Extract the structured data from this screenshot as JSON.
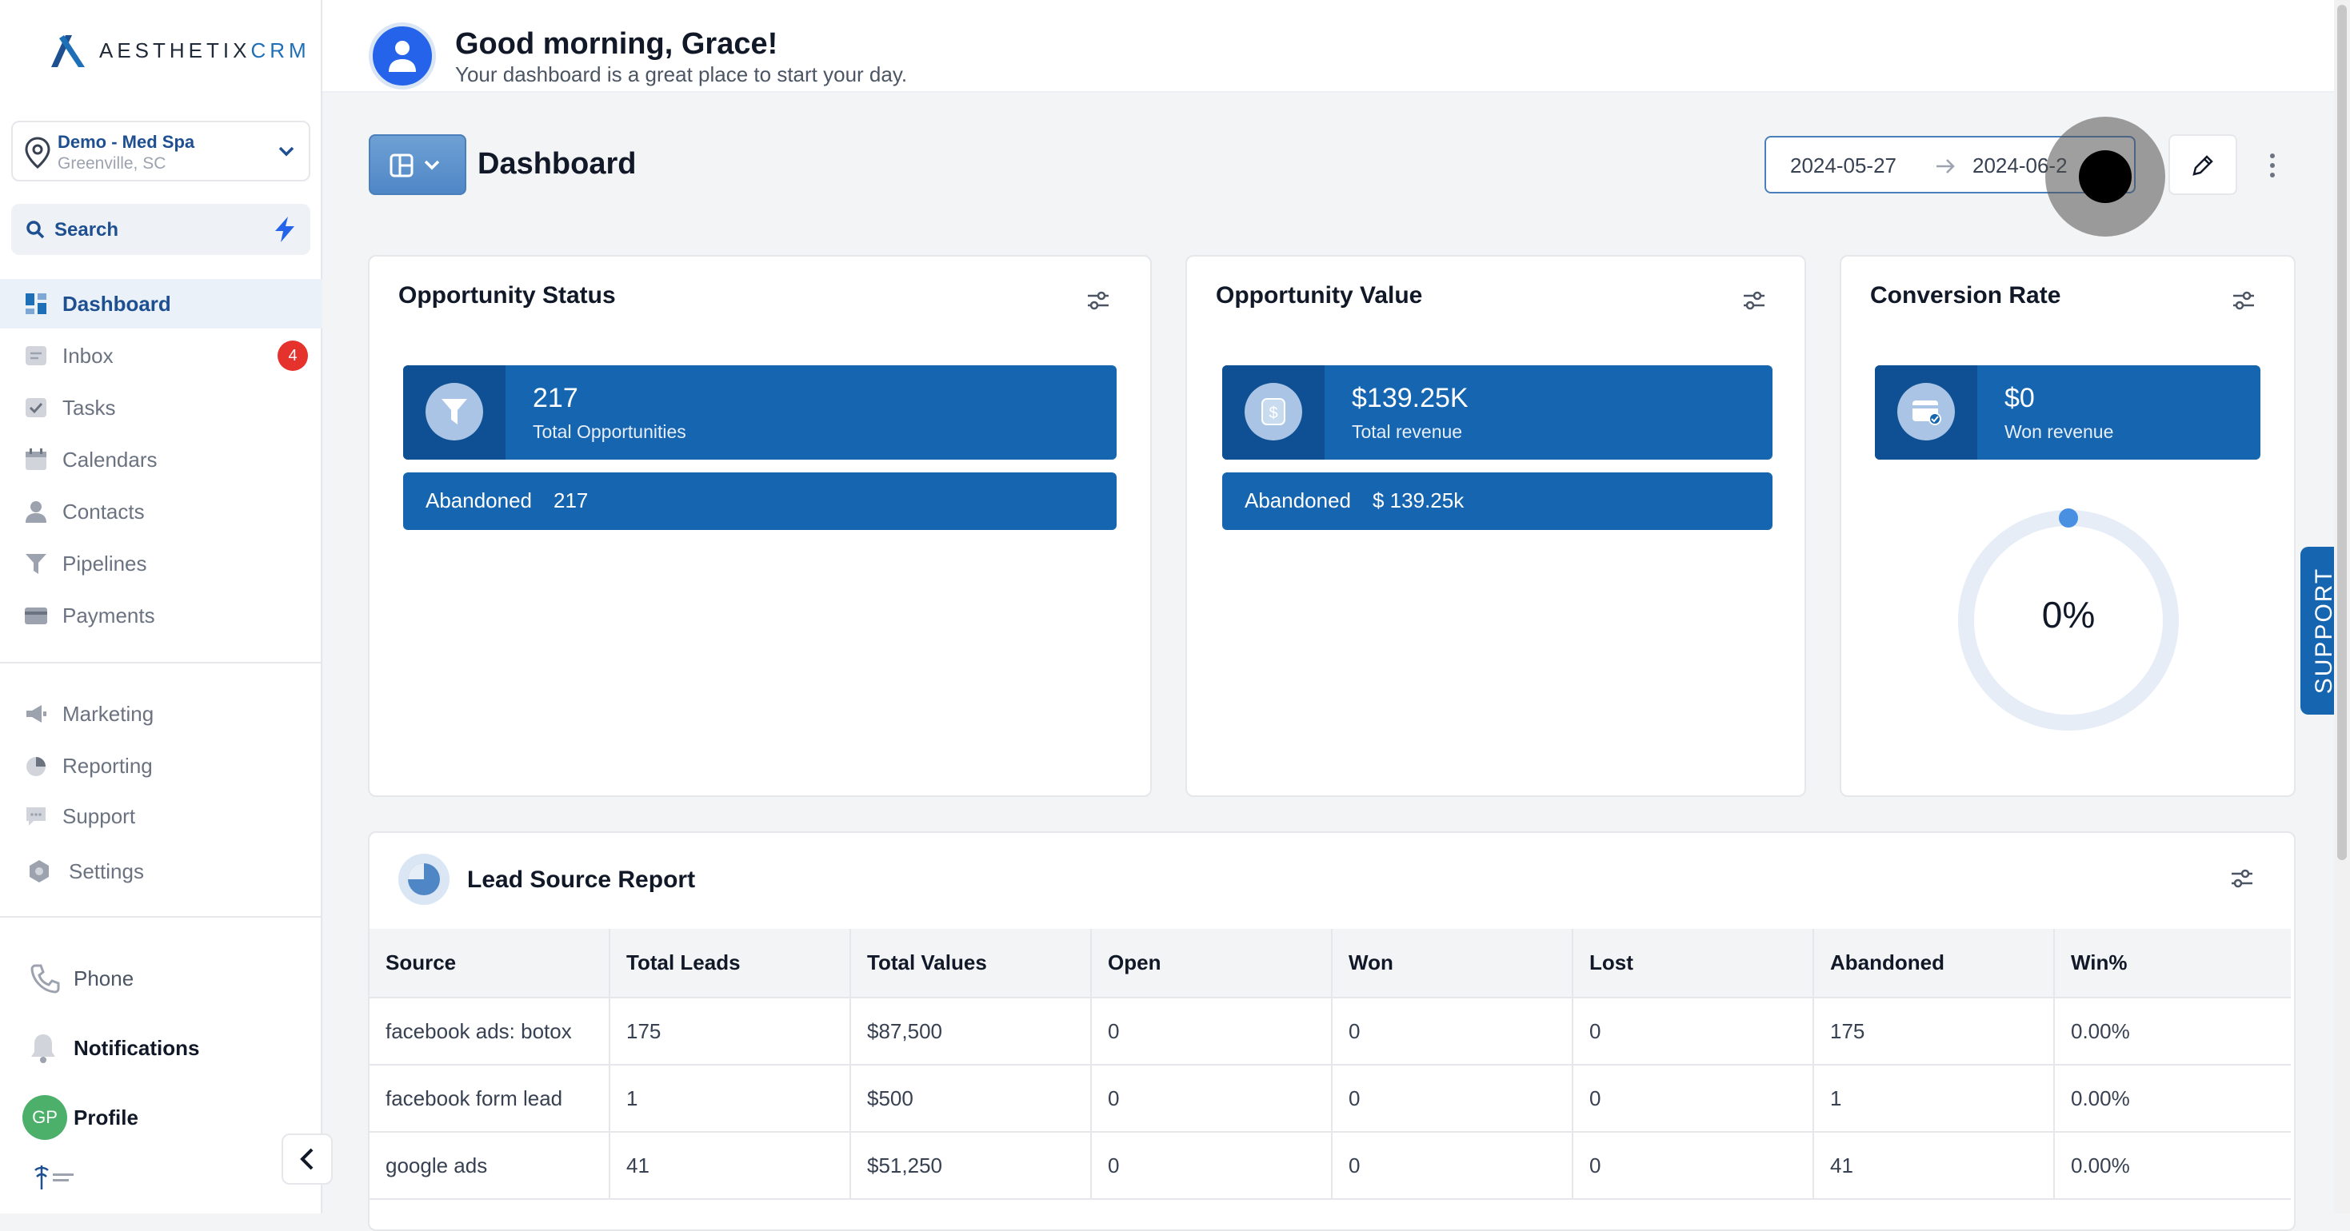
{
  "brand": {
    "logo_a": "AESTHETIX",
    "logo_b": "CRM"
  },
  "location": {
    "name": "Demo - Med Spa",
    "city": "Greenville, SC"
  },
  "search": {
    "label": "Search"
  },
  "nav": {
    "items": [
      {
        "label": "Dashboard",
        "icon": "dashboard-icon",
        "active": true
      },
      {
        "label": "Inbox",
        "icon": "inbox-icon",
        "badge": "4"
      },
      {
        "label": "Tasks",
        "icon": "tasks-icon"
      },
      {
        "label": "Calendars",
        "icon": "calendar-icon"
      },
      {
        "label": "Contacts",
        "icon": "contacts-icon"
      },
      {
        "label": "Pipelines",
        "icon": "pipelines-icon"
      },
      {
        "label": "Payments",
        "icon": "payments-icon"
      }
    ],
    "secondary": [
      {
        "label": "Marketing",
        "icon": "marketing-icon"
      },
      {
        "label": "Reporting",
        "icon": "reporting-icon"
      },
      {
        "label": "Support",
        "icon": "support-icon"
      },
      {
        "label": "Settings",
        "icon": "settings-icon"
      }
    ],
    "bottom": {
      "phone": "Phone",
      "notifications": "Notifications",
      "profile": "Profile",
      "profile_initials": "GP"
    }
  },
  "header": {
    "greeting": "Good morning, Grace!",
    "subtitle": "Your dashboard is a great place to start your day."
  },
  "toolbar": {
    "title": "Dashboard",
    "date_start": "2024-05-27",
    "date_end": "2024-06-2"
  },
  "cards": {
    "opportunity_status": {
      "title": "Opportunity Status",
      "value": "217",
      "label": "Total Opportunities",
      "row_label": "Abandoned",
      "row_value": "217"
    },
    "opportunity_value": {
      "title": "Opportunity Value",
      "value": "$139.25K",
      "label": "Total revenue",
      "row_label": "Abandoned",
      "row_value": "$ 139.25k"
    },
    "conversion_rate": {
      "title": "Conversion Rate",
      "value": "$0",
      "label": "Won revenue",
      "percent": "0%",
      "percent_value": 0
    }
  },
  "lead_report": {
    "title": "Lead Source Report",
    "columns": [
      "Source",
      "Total Leads",
      "Total Values",
      "Open",
      "Won",
      "Lost",
      "Abandoned",
      "Win%"
    ],
    "rows": [
      [
        "facebook ads: botox",
        "175",
        "$87,500",
        "0",
        "0",
        "0",
        "175",
        "0.00%"
      ],
      [
        "facebook form lead",
        "1",
        "$500",
        "0",
        "0",
        "0",
        "1",
        "0.00%"
      ],
      [
        "google ads",
        "41",
        "$51,250",
        "0",
        "0",
        "0",
        "41",
        "0.00%"
      ]
    ]
  },
  "support_tab": {
    "label": "SUPPORT"
  },
  "colors": {
    "primary": "#1565b0",
    "primary_dark": "#0f4f93",
    "brand_text": "#1e4f91",
    "badge": "#e5322d"
  }
}
